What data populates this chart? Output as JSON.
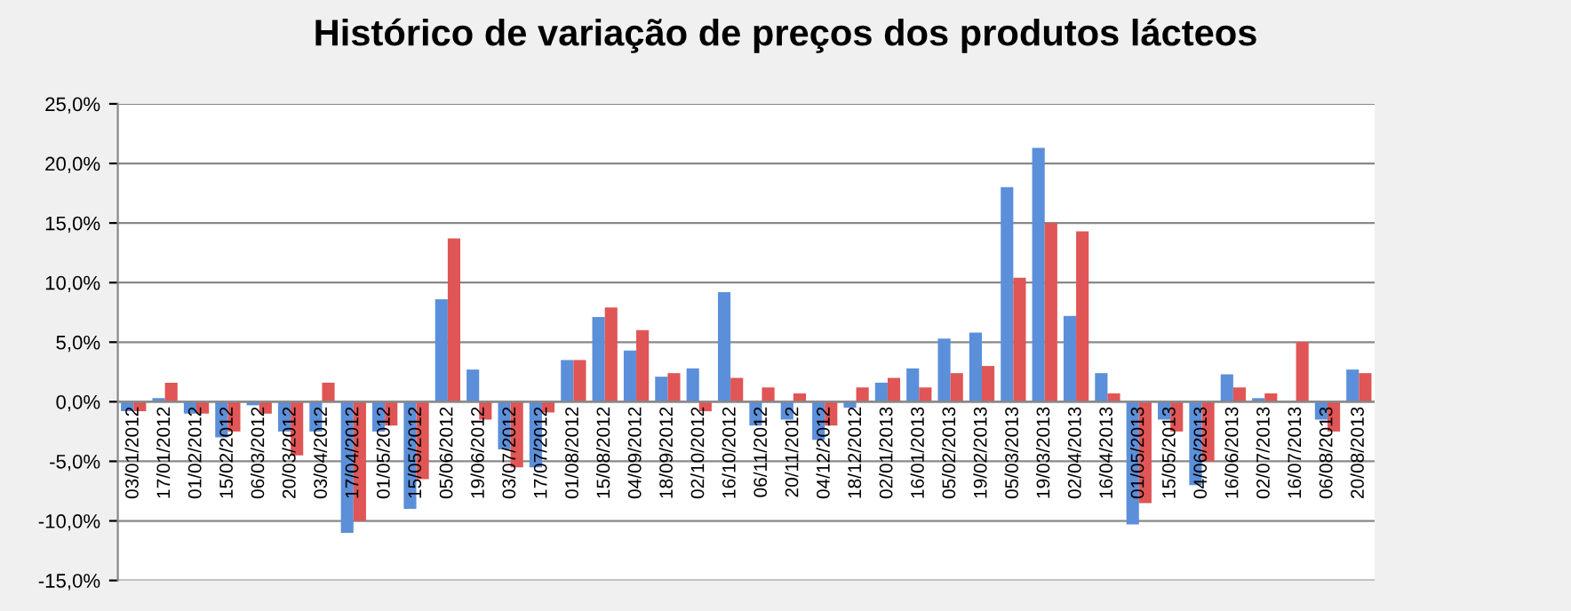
{
  "chart_data": {
    "type": "bar",
    "title": "Histórico de variação de preços dos produtos lácteos",
    "categories": [
      "03/01/2012",
      "17/01/2012",
      "01/02/2012",
      "15/02/2012",
      "06/03/2012",
      "20/03/2012",
      "03/04/2012",
      "17/04/2012",
      "01/05/2012",
      "15/05/2012",
      "05/06/2012",
      "19/06/2012",
      "03/07/2012",
      "17/07/2012",
      "01/08/2012",
      "15/08/2012",
      "04/09/2012",
      "18/09/2012",
      "02/10/2012",
      "16/10/2012",
      "06/11/2012",
      "20/11/2012",
      "04/12/2012",
      "18/12/2012",
      "02/01/2013",
      "16/01/2013",
      "05/02/2013",
      "19/02/2013",
      "05/03/2013",
      "19/03/2013",
      "02/04/2013",
      "16/04/2013",
      "01/05/2013",
      "15/05/2013",
      "04/06/2013",
      "16/06/2013",
      "02/07/2013",
      "16/07/2013",
      "06/08/2013",
      "20/08/2013"
    ],
    "series": [
      {
        "color": "#5b8fd9",
        "values": [
          -0.8,
          0.3,
          -1.0,
          -3.0,
          -0.3,
          -2.5,
          -2.5,
          -11.0,
          -2.5,
          -9.0,
          8.6,
          2.7,
          -4.0,
          -5.5,
          3.5,
          7.1,
          4.3,
          2.1,
          2.8,
          9.2,
          -2.0,
          -1.5,
          -3.2,
          -0.5,
          1.6,
          2.8,
          5.3,
          5.8,
          18.0,
          21.3,
          7.2,
          2.4,
          -10.3,
          -1.5,
          -7.0,
          2.3,
          0.3,
          0.0,
          -1.5,
          2.7
        ]
      },
      {
        "color": "#e05555",
        "values": [
          -0.8,
          1.6,
          -1.0,
          -2.5,
          -1.0,
          -4.5,
          1.6,
          -10.0,
          -2.0,
          -6.5,
          13.7,
          -1.5,
          -5.5,
          -0.9,
          3.5,
          7.9,
          6.0,
          2.4,
          -0.8,
          2.0,
          1.2,
          0.7,
          -2.0,
          1.2,
          2.0,
          1.2,
          2.4,
          3.0,
          10.4,
          15.0,
          14.3,
          0.7,
          -8.5,
          -2.5,
          -5.0,
          1.2,
          0.7,
          5.0,
          -2.5,
          2.4
        ]
      }
    ],
    "ylim": [
      -15,
      25
    ],
    "yticks": [
      {
        "value": -15,
        "label": "-15,0%"
      },
      {
        "value": -10,
        "label": "-10,0%"
      },
      {
        "value": -5,
        "label": "-5,0%"
      },
      {
        "value": 0,
        "label": "0,0%"
      },
      {
        "value": 5,
        "label": "5,0%"
      },
      {
        "value": 10,
        "label": "10,0%"
      },
      {
        "value": 15,
        "label": "15,0%"
      },
      {
        "value": 20,
        "label": "20,0%"
      },
      {
        "value": 25,
        "label": "25,0%"
      }
    ],
    "grid": "y"
  }
}
